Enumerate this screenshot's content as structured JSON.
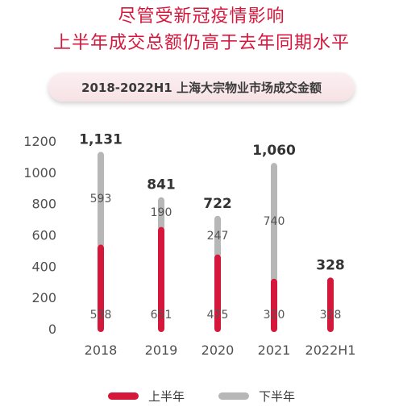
{
  "headline": {
    "line1": "尽管受新冠疫情影响",
    "line2": "上半年成交总额仍高于去年同期水平"
  },
  "colors": {
    "accent": "#d6173c",
    "first_half": "#d6173c",
    "second_half": "#b7b7b7",
    "title_pill": "#f7e5e8"
  },
  "chart_data": {
    "type": "bar",
    "title": "2018-2022H1 上海大宗物业市场成交金额",
    "categories": [
      "2018",
      "2019",
      "2020",
      "2021",
      "2022H1"
    ],
    "stacked": true,
    "ylim": [
      0,
      1200
    ],
    "yticks": [
      0,
      200,
      400,
      600,
      800,
      1000,
      1200
    ],
    "grid": false,
    "legend_position": "bottom",
    "series": [
      {
        "name": "上半年",
        "values": [
          538,
          651,
          475,
          320,
          328
        ],
        "value_labels": [
          "538",
          "651",
          "475",
          "320",
          "328"
        ],
        "color": "#d6173c"
      },
      {
        "name": "下半年",
        "values": [
          593,
          190,
          247,
          740,
          null
        ],
        "value_labels": [
          "593",
          "190",
          "247",
          "740",
          ""
        ],
        "color": "#b7b7b7"
      }
    ],
    "totals": [
      1131,
      841,
      722,
      1060,
      328
    ],
    "total_labels": [
      "1,131",
      "841",
      "722",
      "1,060",
      "328"
    ]
  }
}
